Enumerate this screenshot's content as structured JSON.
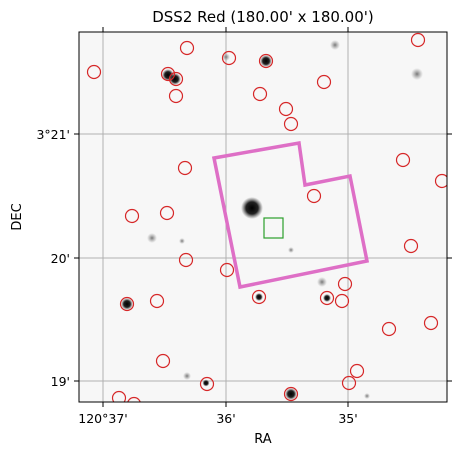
{
  "title": "DSS2 Red (180.00' x 180.00')",
  "axes": {
    "xlabel": "RA",
    "ylabel": "DEC",
    "xticks": [
      "120°37'",
      "36'",
      "35'"
    ],
    "yticks": [
      "3°21'",
      "20'",
      "19'"
    ],
    "grid": true
  },
  "colors": {
    "catalog_circle": "#d62728",
    "footprint": "#de6fc6",
    "target_box": "#2ca02c",
    "grid": "#b0b0b0",
    "sky": "#f7f7f7"
  },
  "overlays": {
    "circles": "catalog-source-markers",
    "polygon": "instrument-footprint",
    "square": "target-marker"
  }
}
